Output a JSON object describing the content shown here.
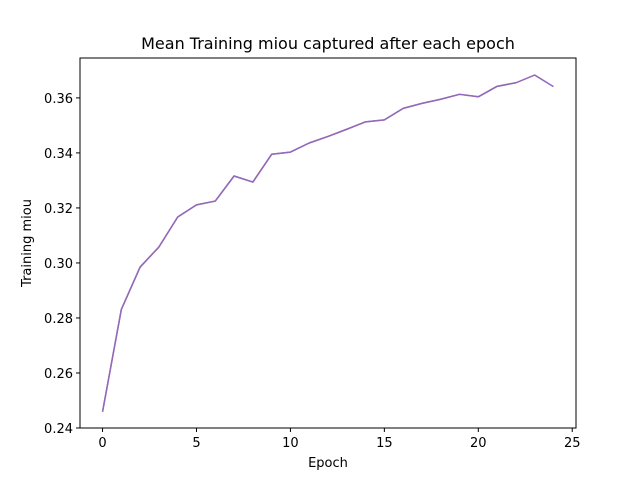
{
  "chart_data": {
    "type": "line",
    "title": "Mean Training miou captured after each epoch",
    "xlabel": "Epoch",
    "ylabel": "Training miou",
    "xlim": [
      -1.2,
      25.2
    ],
    "ylim": [
      0.24,
      0.3745
    ],
    "xticks": [
      0,
      5,
      10,
      15,
      20,
      25
    ],
    "yticks": [
      0.24,
      0.26,
      0.28,
      0.3,
      0.32,
      0.34,
      0.36
    ],
    "xtick_labels": [
      "0",
      "5",
      "10",
      "15",
      "20",
      "25"
    ],
    "ytick_labels": [
      "0.24",
      "0.26",
      "0.28",
      "0.30",
      "0.32",
      "0.34",
      "0.36"
    ],
    "grid": false,
    "legend": "none",
    "series": [
      {
        "color": "#9467bd",
        "x": [
          0,
          1,
          2,
          3,
          4,
          5,
          6,
          7,
          8,
          9,
          10,
          11,
          12,
          13,
          14,
          15,
          16,
          17,
          18,
          19,
          20,
          21,
          22,
          23,
          24
        ],
        "y": [
          0.2459,
          0.2831,
          0.2985,
          0.3058,
          0.3167,
          0.3211,
          0.3225,
          0.3316,
          0.3294,
          0.3395,
          0.3403,
          0.3436,
          0.346,
          0.3486,
          0.3513,
          0.352,
          0.3562,
          0.358,
          0.3595,
          0.3613,
          0.3604,
          0.3642,
          0.3655,
          0.3683,
          0.3641
        ]
      },
      {
        "color": "#8c8c8c",
        "x": [
          0,
          1,
          2,
          3,
          4,
          5,
          6,
          7,
          8,
          9,
          10,
          11,
          12,
          13,
          14,
          15,
          16,
          17,
          18,
          19,
          20,
          21,
          22
        ],
        "y": [
          0.2459,
          0.2831,
          0.2985,
          0.3058,
          0.3167,
          0.3211,
          0.3225,
          0.3316,
          0.3294,
          0.3395,
          0.3403,
          0.3436,
          0.346,
          0.3486,
          0.3513,
          0.352,
          0.3562,
          0.358,
          0.3595,
          0.3613,
          0.3604,
          0.3642,
          0.3655
        ]
      }
    ]
  }
}
